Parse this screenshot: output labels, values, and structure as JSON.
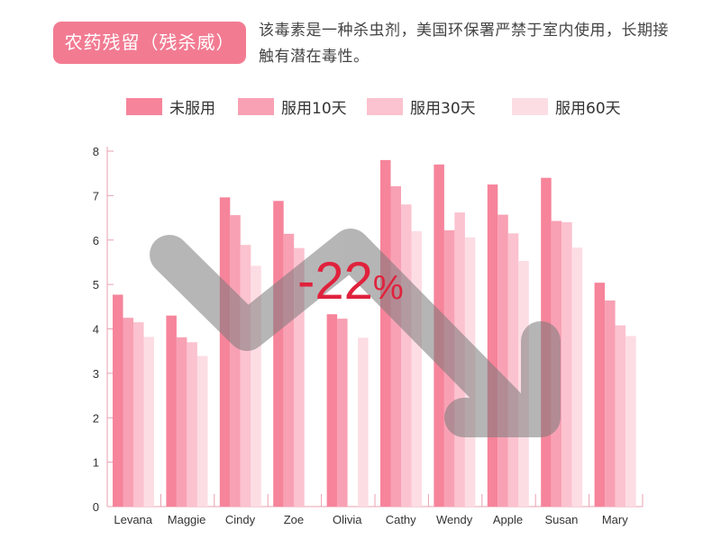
{
  "header": {
    "badge": "农药残留（残杀威）",
    "description": "该毒素是一种杀虫剂，美国环保署严禁于室内使用，长期接触有潜在毒性。"
  },
  "annotation": {
    "change": "-22",
    "unit": "%"
  },
  "chart_data": {
    "type": "bar",
    "categories": [
      "Levana",
      "Maggie",
      "Cindy",
      "Zoe",
      "Olivia",
      "Cathy",
      "Wendy",
      "Apple",
      "Susan",
      "Mary"
    ],
    "series": [
      {
        "name": "未服用",
        "color": "#f6849b",
        "values": [
          4.77,
          4.3,
          6.96,
          6.88,
          4.33,
          7.8,
          7.7,
          7.25,
          7.4,
          5.04
        ]
      },
      {
        "name": "服用10天",
        "color": "#f8a1b4",
        "values": [
          4.25,
          3.81,
          6.56,
          6.14,
          4.23,
          7.21,
          6.22,
          6.57,
          6.43,
          4.64
        ]
      },
      {
        "name": "服用30天",
        "color": "#fbc2cf",
        "values": [
          4.15,
          3.7,
          5.89,
          5.82,
          null,
          6.8,
          6.62,
          6.15,
          6.4,
          4.08
        ]
      },
      {
        "name": "服用60天",
        "color": "#fcdde4",
        "values": [
          3.82,
          3.39,
          5.42,
          null,
          3.8,
          6.2,
          6.06,
          5.53,
          5.83,
          3.84
        ]
      }
    ],
    "yticks": [
      0,
      1,
      2,
      3,
      4,
      5,
      6,
      7,
      8
    ],
    "ylim": [
      0,
      8
    ],
    "legend_position": "top",
    "grid": false,
    "axis_color": "#e8a0b0",
    "arrow_color": "#7a7a7a",
    "change_color": "#e0223c"
  }
}
